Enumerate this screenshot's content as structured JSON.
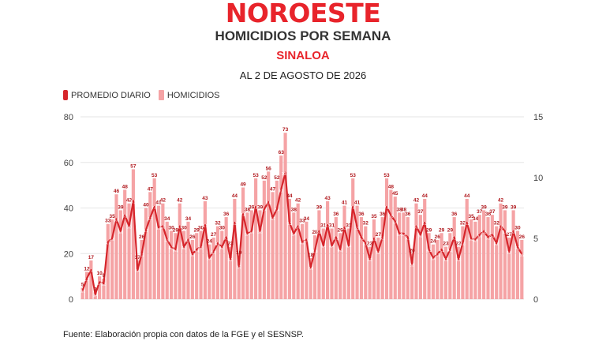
{
  "brand": {
    "name": "NOROESTE"
  },
  "header": {
    "title": "HOMICIDIOS POR SEMANA",
    "subtitle": "SINALOA",
    "date": "AL 2 DE AGOSTO DE 2026"
  },
  "legend": {
    "line_label": "PROMEDIO DIARIO",
    "bar_label": "HOMICIDIOS"
  },
  "source": "Fuente: Elaboración propia con datos de la FGE y el SESNSP.",
  "colors": {
    "line": "#d6252b",
    "bar": "#f5a3a5",
    "brand": "#e8242b",
    "grid": "#e6e6e6"
  },
  "chart_data": {
    "type": "bar",
    "left_axis": {
      "min": 0,
      "max": 80,
      "ticks": [
        0,
        20,
        40,
        60,
        80
      ]
    },
    "right_axis": {
      "min": 0,
      "max": 15,
      "ticks": [
        0,
        5,
        10,
        15
      ]
    },
    "grid": true,
    "legend_position": "top-left",
    "series": [
      {
        "name": "HOMICIDIOS",
        "kind": "bar",
        "axis": "left",
        "values": [
          5,
          12,
          17,
          3,
          10,
          9,
          33,
          35,
          46,
          39,
          48,
          42,
          57,
          17,
          26,
          40,
          47,
          53,
          41,
          42,
          34,
          30,
          29,
          42,
          30,
          34,
          26,
          29,
          30,
          43,
          24,
          27,
          32,
          30,
          36,
          23,
          44,
          19,
          49,
          38,
          39,
          53,
          39,
          52,
          56,
          47,
          52,
          63,
          73,
          44,
          38,
          42,
          33,
          34,
          18,
          28,
          39,
          31,
          43,
          31,
          36,
          29,
          41,
          31,
          53,
          41,
          36,
          32,
          23,
          35,
          27,
          36,
          53,
          48,
          45,
          38,
          38,
          36,
          20,
          42,
          37,
          44,
          29,
          24,
          26,
          29,
          23,
          29,
          36,
          23,
          32,
          44,
          35,
          34,
          37,
          39,
          36,
          37,
          32,
          42,
          39,
          27,
          39,
          30,
          26
        ],
        "labels": [
          "5",
          "12",
          "17",
          "3",
          "10",
          "9",
          "33",
          "35",
          "46",
          "39",
          "48",
          "42",
          "57",
          "17",
          "26",
          "40",
          "47",
          "53",
          "41",
          "42",
          "34",
          "30",
          "29",
          "42",
          "30",
          "34",
          "26",
          "29",
          "30",
          "43",
          "24",
          "27",
          "32",
          "30",
          "36",
          "23",
          "44",
          "19",
          "49",
          "38",
          "39",
          "53",
          "39",
          "52",
          "56",
          "47",
          "52",
          "63",
          "73",
          "44",
          "38",
          "42",
          "33",
          "34",
          "18",
          "28",
          "39",
          "31",
          "43",
          "31",
          "36",
          "29",
          "41",
          "31",
          "53",
          "41",
          "36",
          "32",
          "23",
          "35",
          "27",
          "36",
          "53",
          "48",
          "45",
          "38",
          "38",
          "36",
          "20",
          "42",
          "37",
          "44",
          "29",
          "24",
          "26",
          "29",
          "23",
          "29",
          "36",
          "23",
          "32",
          "44",
          "35",
          "34",
          "37",
          "39",
          "36",
          "37",
          "32",
          "42",
          "39",
          "27",
          "39",
          "30",
          "26"
        ]
      },
      {
        "name": "PROMEDIO DIARIO",
        "kind": "line",
        "axis": "right",
        "values": [
          0.7,
          1.7,
          2.4,
          0.4,
          1.4,
          1.3,
          4.7,
          5.0,
          6.6,
          5.6,
          6.9,
          6.0,
          8.1,
          2.4,
          3.7,
          5.7,
          6.7,
          7.6,
          5.9,
          6.0,
          4.9,
          4.3,
          4.1,
          6.0,
          4.3,
          4.9,
          3.7,
          4.1,
          4.3,
          6.1,
          3.4,
          3.9,
          4.6,
          4.3,
          5.1,
          3.3,
          6.3,
          2.7,
          7.0,
          5.4,
          5.6,
          7.6,
          5.6,
          7.4,
          8.0,
          6.7,
          7.4,
          9.0,
          10.4,
          6.3,
          5.4,
          6.0,
          4.7,
          4.9,
          2.6,
          4.0,
          5.6,
          4.4,
          6.1,
          4.4,
          5.1,
          4.1,
          5.9,
          4.4,
          7.6,
          5.9,
          5.1,
          4.6,
          3.3,
          5.0,
          3.9,
          5.1,
          7.6,
          6.9,
          6.4,
          5.4,
          5.4,
          5.1,
          2.9,
          6.0,
          5.3,
          6.3,
          4.1,
          3.4,
          3.7,
          4.1,
          3.3,
          4.1,
          5.1,
          3.3,
          4.6,
          6.3,
          5.0,
          4.9,
          5.3,
          5.6,
          5.1,
          5.3,
          4.6,
          6.0,
          5.6,
          3.9,
          5.6,
          4.3,
          3.7
        ],
        "labels": [
          "0.7",
          "1.7",
          "2.4",
          "0.4",
          "1.4",
          "1.3",
          "4.7",
          "5.0",
          "6.6",
          "5.6",
          "6.9",
          "6.0",
          "8.1",
          "2.4",
          "3.7",
          "5.7",
          "6.7",
          "7.6",
          "5.9",
          "6.0",
          "4.9",
          "4.3",
          "4.1",
          "6.0",
          "4.3",
          "4.9",
          "3.7",
          "4.1",
          "4.3",
          "6.1",
          "3.4",
          "3.9",
          "4.6",
          "4.3",
          "5.1",
          "3.3",
          "6.3",
          "2.7",
          "7.0",
          "5.4",
          "5.6",
          "7.6",
          "5.6",
          "7.4",
          "8.0",
          "6.7",
          "7.4",
          "9.0",
          "10.4",
          "6.3",
          "5.4",
          "6.0",
          "4.7",
          "4.9",
          "2.6",
          "4.0",
          "5.6",
          "4.4",
          "6.1",
          "4.4",
          "5.1",
          "4.1",
          "5.9",
          "4.4",
          "7.6",
          "5.9",
          "5.1",
          "4.6",
          "3.3",
          "5.0",
          "3.9",
          "5.1",
          "7.6",
          "6.9",
          "6.4",
          "5.4",
          "5.4",
          "5.1",
          "2.9",
          "6.0",
          "5.3",
          "6.3",
          "4.1",
          "3.4",
          "3.7",
          "4.1",
          "3.3",
          "4.1",
          "5.1",
          "3.3",
          "4.6",
          "6.3",
          "5.0",
          "4.9",
          "5.3",
          "5.6",
          "5.1",
          "5.3",
          "4.6",
          "6.0",
          "5.6",
          "3.9",
          "5.6",
          "4.3",
          "3.7"
        ]
      }
    ]
  }
}
